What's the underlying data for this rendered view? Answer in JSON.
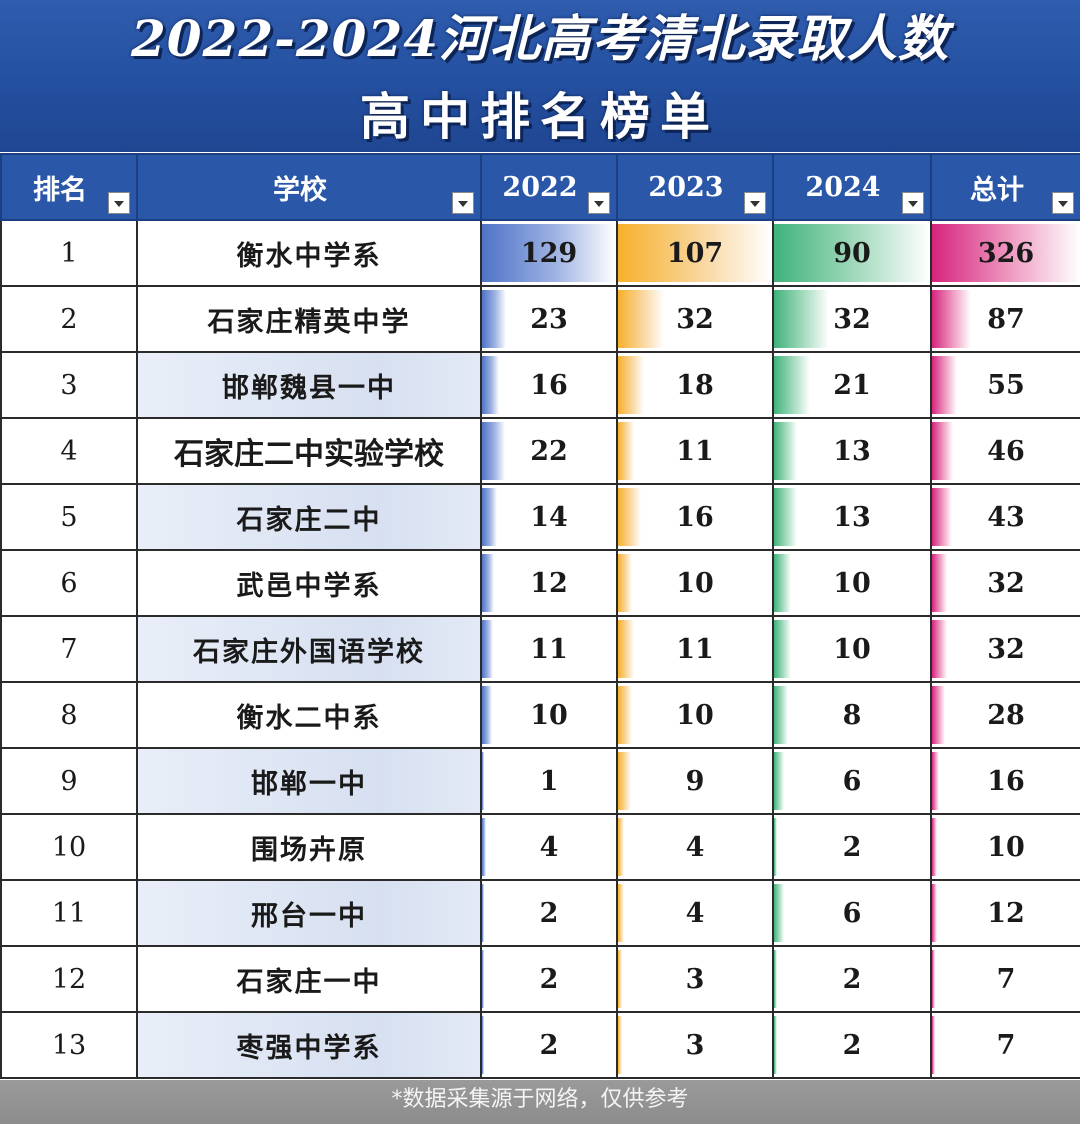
{
  "banner": {
    "title_line1": "2022-2024河北高考清北录取人数",
    "title_line2": "高中排名榜单"
  },
  "table": {
    "headers": {
      "rank": "排名",
      "school": "学校",
      "y2022": "2022",
      "y2023": "2023",
      "y2024": "2024",
      "total": "总计"
    },
    "bar_colors": {
      "y2022": "#4f73c7",
      "y2023": "#f7b02a",
      "y2024": "#3fb27a",
      "total": "#d6237d"
    },
    "rows": [
      {
        "rank": "1",
        "school": "衡水中学系",
        "y2022": 129,
        "y2023": 107,
        "y2024": 90,
        "total": 326
      },
      {
        "rank": "2",
        "school": "石家庄精英中学",
        "y2022": 23,
        "y2023": 32,
        "y2024": 32,
        "total": 87
      },
      {
        "rank": "3",
        "school": "邯郸魏县一中",
        "y2022": 16,
        "y2023": 18,
        "y2024": 21,
        "total": 55
      },
      {
        "rank": "4",
        "school": "石家庄二中实验学校",
        "y2022": 22,
        "y2023": 11,
        "y2024": 13,
        "total": 46
      },
      {
        "rank": "5",
        "school": "石家庄二中",
        "y2022": 14,
        "y2023": 16,
        "y2024": 13,
        "total": 43
      },
      {
        "rank": "6",
        "school": "武邑中学系",
        "y2022": 12,
        "y2023": 10,
        "y2024": 10,
        "total": 32
      },
      {
        "rank": "7",
        "school": "石家庄外国语学校",
        "y2022": 11,
        "y2023": 11,
        "y2024": 10,
        "total": 32
      },
      {
        "rank": "8",
        "school": "衡水二中系",
        "y2022": 10,
        "y2023": 10,
        "y2024": 8,
        "total": 28
      },
      {
        "rank": "9",
        "school": "邯郸一中",
        "y2022": 1,
        "y2023": 9,
        "y2024": 6,
        "total": 16
      },
      {
        "rank": "10",
        "school": "围场卉原",
        "y2022": 4,
        "y2023": 4,
        "y2024": 2,
        "total": 10
      },
      {
        "rank": "11",
        "school": "邢台一中",
        "y2022": 2,
        "y2023": 4,
        "y2024": 6,
        "total": 12
      },
      {
        "rank": "12",
        "school": "石家庄一中",
        "y2022": 2,
        "y2023": 3,
        "y2024": 2,
        "total": 7
      },
      {
        "rank": "13",
        "school": "枣强中学系",
        "y2022": 2,
        "y2023": 3,
        "y2024": 2,
        "total": 7
      }
    ]
  },
  "footer": {
    "note": "*数据采集源于网络，仅供参考"
  }
}
